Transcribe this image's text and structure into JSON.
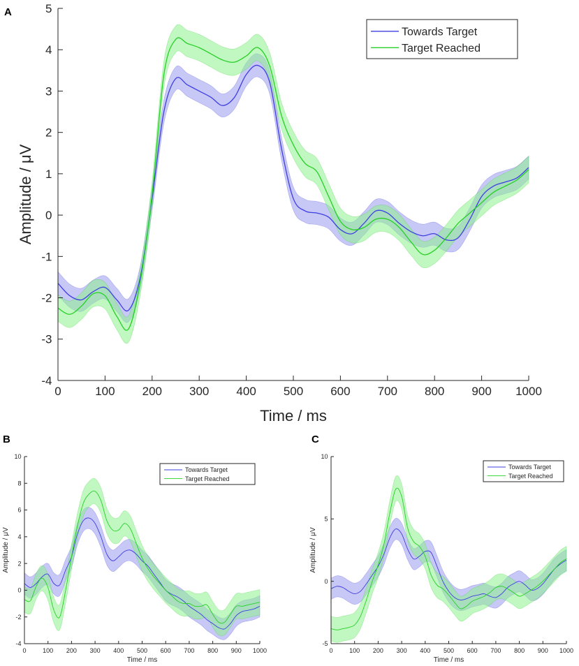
{
  "panels": [
    {
      "label": "A"
    },
    {
      "label": "B"
    },
    {
      "label": "C"
    }
  ],
  "colors": {
    "towards": "#3f3fe0",
    "towards_fill": "#9a9af0",
    "reached": "#28d028",
    "reached_fill": "#8ef08e"
  },
  "chart_data": [
    {
      "type": "line",
      "title": "",
      "xlabel": "Time / ms",
      "ylabel": "Amplitude / μV",
      "xlim": [
        0,
        1000
      ],
      "ylim": [
        -4,
        5
      ],
      "xticks": [
        0,
        100,
        200,
        300,
        400,
        500,
        600,
        700,
        800,
        900,
        1000
      ],
      "yticks": [
        -4,
        -3,
        -2,
        -1,
        0,
        1,
        2,
        3,
        4,
        5
      ],
      "legend_position": "top-right",
      "x": [
        0,
        25,
        50,
        75,
        100,
        125,
        150,
        175,
        200,
        225,
        250,
        275,
        300,
        325,
        350,
        375,
        400,
        425,
        450,
        475,
        500,
        525,
        550,
        575,
        600,
        625,
        650,
        675,
        700,
        725,
        750,
        775,
        800,
        825,
        850,
        875,
        900,
        925,
        950,
        975,
        1000
      ],
      "series": [
        {
          "name": "Towards Target",
          "color_key": "towards",
          "values": [
            -1.65,
            -1.95,
            -2.05,
            -1.85,
            -1.75,
            -2.05,
            -2.3,
            -1.5,
            0.4,
            2.5,
            3.3,
            3.15,
            3.0,
            2.85,
            2.65,
            2.85,
            3.4,
            3.62,
            3.2,
            1.6,
            0.4,
            0.1,
            0.05,
            -0.05,
            -0.35,
            -0.45,
            -0.2,
            0.1,
            0.05,
            -0.2,
            -0.4,
            -0.5,
            -0.45,
            -0.6,
            -0.55,
            -0.1,
            0.45,
            0.7,
            0.8,
            0.9,
            1.15
          ],
          "err": 0.28
        },
        {
          "name": "Target Reached",
          "color_key": "reached",
          "values": [
            -2.25,
            -2.4,
            -2.2,
            -1.9,
            -1.95,
            -2.45,
            -2.75,
            -1.6,
            0.5,
            3.4,
            4.25,
            4.15,
            4.05,
            3.9,
            3.75,
            3.7,
            3.85,
            4.05,
            3.6,
            2.4,
            1.7,
            1.25,
            1.05,
            0.45,
            -0.15,
            -0.35,
            -0.3,
            -0.1,
            -0.1,
            -0.3,
            -0.65,
            -0.95,
            -0.85,
            -0.55,
            -0.2,
            0.05,
            0.3,
            0.55,
            0.7,
            0.85,
            1.1
          ],
          "err": 0.32
        }
      ]
    },
    {
      "type": "line",
      "title": "",
      "xlabel": "Time / ms",
      "ylabel": "Amplitude / μV",
      "xlim": [
        0,
        1000
      ],
      "ylim": [
        -4,
        10
      ],
      "xticks": [
        0,
        100,
        200,
        300,
        400,
        500,
        600,
        700,
        800,
        900,
        1000
      ],
      "yticks": [
        -4,
        -2,
        0,
        2,
        4,
        6,
        8,
        10
      ],
      "legend_position": "top-right",
      "x": [
        0,
        25,
        50,
        75,
        100,
        125,
        150,
        175,
        200,
        225,
        250,
        275,
        300,
        325,
        350,
        375,
        400,
        425,
        450,
        475,
        500,
        525,
        550,
        575,
        600,
        625,
        650,
        675,
        700,
        725,
        750,
        775,
        800,
        825,
        850,
        875,
        900,
        925,
        950,
        975,
        1000
      ],
      "series": [
        {
          "name": "Towards Target",
          "color_key": "towards",
          "values": [
            0.5,
            0.2,
            0.5,
            1.0,
            1.2,
            0.5,
            0.4,
            1.5,
            2.5,
            4.2,
            5.2,
            5.4,
            5.0,
            4.0,
            2.7,
            2.2,
            2.5,
            2.9,
            3.0,
            2.7,
            2.2,
            1.8,
            1.2,
            0.6,
            0.0,
            -0.3,
            -0.5,
            -0.8,
            -1.2,
            -1.5,
            -1.8,
            -2.2,
            -2.5,
            -2.8,
            -2.9,
            -2.5,
            -1.9,
            -1.6,
            -1.5,
            -1.4,
            -1.2
          ],
          "err": 0.8
        },
        {
          "name": "Target Reached",
          "color_key": "reached",
          "values": [
            -0.7,
            -0.8,
            0.3,
            0.9,
            0.2,
            -1.5,
            -2.0,
            0.0,
            2.5,
            4.8,
            6.5,
            7.2,
            7.4,
            6.7,
            5.2,
            4.5,
            4.5,
            5.0,
            4.6,
            3.5,
            2.4,
            1.6,
            1.0,
            0.5,
            0.0,
            -0.4,
            -0.8,
            -1.0,
            -1.0,
            -1.2,
            -1.2,
            -1.1,
            -1.8,
            -2.4,
            -2.4,
            -1.8,
            -1.2,
            -1.2,
            -1.1,
            -1.0,
            -0.9
          ],
          "err": 0.95
        }
      ]
    },
    {
      "type": "line",
      "title": "",
      "xlabel": "Time / ms",
      "ylabel": "Amplitude / μV",
      "xlim": [
        0,
        1000
      ],
      "ylim": [
        -5,
        10
      ],
      "xticks": [
        0,
        100,
        200,
        300,
        400,
        500,
        600,
        700,
        800,
        900,
        1000
      ],
      "yticks": [
        -5,
        0,
        5,
        10
      ],
      "legend_position": "top-right",
      "x": [
        0,
        25,
        50,
        75,
        100,
        125,
        150,
        175,
        200,
        225,
        250,
        275,
        300,
        325,
        350,
        375,
        400,
        425,
        450,
        475,
        500,
        525,
        550,
        575,
        600,
        625,
        650,
        675,
        700,
        725,
        750,
        775,
        800,
        825,
        850,
        875,
        900,
        925,
        950,
        975,
        1000
      ],
      "series": [
        {
          "name": "Towards Target",
          "color_key": "towards",
          "values": [
            -0.6,
            -0.4,
            -0.5,
            -0.8,
            -1.0,
            -0.8,
            -0.2,
            0.5,
            1.2,
            2.2,
            3.5,
            4.2,
            3.8,
            2.6,
            1.8,
            2.0,
            2.4,
            2.3,
            1.2,
            0.0,
            -0.8,
            -1.3,
            -1.5,
            -1.4,
            -1.2,
            -1.1,
            -1.0,
            -1.2,
            -1.3,
            -1.0,
            -0.5,
            -0.2,
            0.0,
            -0.3,
            -0.7,
            -0.6,
            -0.2,
            0.4,
            1.0,
            1.4,
            1.7
          ],
          "err": 0.85
        },
        {
          "name": "Target Reached",
          "color_key": "reached",
          "values": [
            -3.8,
            -3.9,
            -3.8,
            -3.7,
            -3.5,
            -2.8,
            -1.5,
            0.0,
            1.3,
            3.0,
            5.5,
            7.4,
            6.8,
            4.3,
            3.2,
            2.8,
            2.0,
            0.5,
            -0.3,
            -0.6,
            -1.1,
            -1.7,
            -2.2,
            -2.0,
            -1.6,
            -1.4,
            -1.2,
            -0.9,
            -0.5,
            -0.4,
            -0.6,
            -0.9,
            -1.2,
            -1.0,
            -0.7,
            -0.4,
            0.0,
            0.5,
            1.0,
            1.5,
            1.8
          ],
          "err": 1.0
        }
      ]
    }
  ]
}
